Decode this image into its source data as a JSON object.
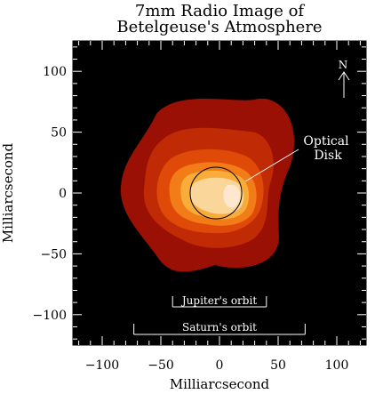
{
  "chart_data": {
    "type": "heatmap",
    "title": [
      "7mm Radio Image of",
      "Betelgeuse's Atmosphere"
    ],
    "xlabel": "Milliarcsecond",
    "ylabel": "Milliarcsecond",
    "xlim": [
      -125,
      125
    ],
    "ylim": [
      -125,
      125
    ],
    "xticks": [
      -100,
      -50,
      0,
      50,
      100
    ],
    "yticks": [
      -100,
      -50,
      0,
      50,
      100
    ],
    "x_tick_labels": [
      "−100",
      "−50",
      "0",
      "50",
      "100"
    ],
    "y_tick_labels": [
      "−100",
      "−50",
      "0",
      "50",
      "100"
    ],
    "background_color": "#000000",
    "contour_colors": [
      "#9b1004",
      "#c02a04",
      "#e04a08",
      "#f27c18",
      "#f8ad3a",
      "#fbd69a",
      "#fde7cf"
    ],
    "optical_disk": {
      "center": [
        -3,
        0
      ],
      "radius": 22
    },
    "annotations": {
      "north_arrow_label": "N",
      "optical_label": [
        "Optical",
        "Disk"
      ],
      "jupiter_label": "Jupiter's orbit",
      "saturn_label": "Saturn's orbit",
      "jupiter_extent": [
        -40,
        40
      ],
      "saturn_extent": [
        -73,
        73
      ]
    }
  }
}
